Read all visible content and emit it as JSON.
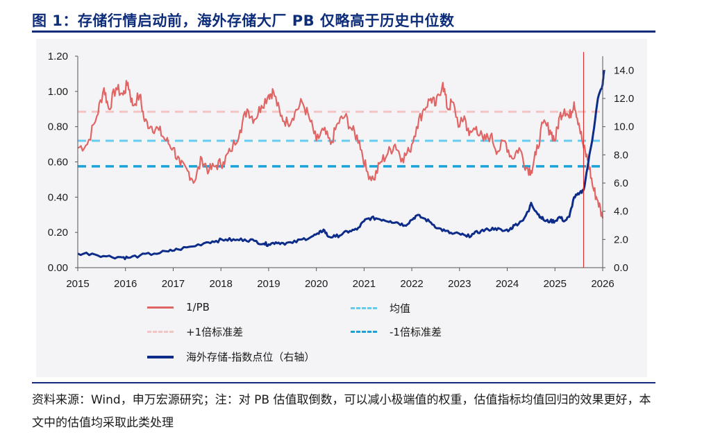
{
  "header": {
    "title": "图 1：存储行情启动前，海外存储大厂 PB 仅略高于历史中位数"
  },
  "footer": {
    "source": "资料来源：Wind，申万宏源研究；注：对 PB 估值取倒数，可以减小极端值的权重，估值指标均值回归的效果更好，本文中的估值均采取此类处理"
  },
  "chart_data": {
    "type": "line",
    "title": "",
    "xlabel": "",
    "ylabel": "",
    "ylabel_right": "",
    "x_ticks": [
      "2015",
      "2016",
      "2017",
      "2018",
      "2019",
      "2020",
      "2021",
      "2022",
      "2023",
      "2024",
      "2025",
      "2026"
    ],
    "x_range": [
      2015.0,
      2026.0
    ],
    "ylim_left": [
      0,
      1.2
    ],
    "left_ticks": [
      "0.00",
      "0.20",
      "0.40",
      "0.60",
      "0.80",
      "1.00",
      "1.20"
    ],
    "ylim_right": [
      0,
      15
    ],
    "right_ticks": [
      "0.0",
      "2.0",
      "4.0",
      "6.0",
      "8.0",
      "10.0",
      "12.0",
      "14.0"
    ],
    "vertical_marker_x": 2025.6,
    "colors": {
      "pb": "#e06666",
      "mean": "#66ccee",
      "plus_std": "#f4c4c4",
      "minus_std": "#1aa3d9",
      "index": "#0d2c8a",
      "marker": "#d93030"
    },
    "legend": [
      "1/PB",
      "均值",
      "+1倍标准差",
      "-1倍标准差",
      "海外存储-指数点位（右轴）"
    ],
    "series": [
      {
        "name": "1/PB",
        "axis": "left",
        "x": [
          2015.0,
          2015.2,
          2015.4,
          2015.55,
          2015.65,
          2015.8,
          2015.95,
          2016.05,
          2016.15,
          2016.3,
          2016.4,
          2016.55,
          2016.7,
          2016.85,
          2017.0,
          2017.15,
          2017.3,
          2017.45,
          2017.6,
          2017.75,
          2017.9,
          2018.05,
          2018.2,
          2018.4,
          2018.55,
          2018.7,
          2018.85,
          2019.0,
          2019.1,
          2019.25,
          2019.4,
          2019.55,
          2019.7,
          2019.85,
          2020.0,
          2020.15,
          2020.3,
          2020.45,
          2020.6,
          2020.75,
          2020.9,
          2021.05,
          2021.2,
          2021.35,
          2021.5,
          2021.65,
          2021.8,
          2021.95,
          2022.1,
          2022.25,
          2022.4,
          2022.5,
          2022.65,
          2022.75,
          2022.85,
          2023.0,
          2023.1,
          2023.2,
          2023.35,
          2023.5,
          2023.65,
          2023.8,
          2023.95,
          2024.1,
          2024.25,
          2024.4,
          2024.5,
          2024.6,
          2024.75,
          2024.9,
          2025.0,
          2025.1,
          2025.2,
          2025.3,
          2025.4,
          2025.5,
          2025.6,
          2025.7,
          2025.8,
          2025.9,
          2026.0
        ],
        "values": [
          0.68,
          0.7,
          0.86,
          1.02,
          0.9,
          1.02,
          0.98,
          1.05,
          0.92,
          0.98,
          0.83,
          0.8,
          0.78,
          0.72,
          0.68,
          0.58,
          0.55,
          0.49,
          0.62,
          0.55,
          0.58,
          0.6,
          0.66,
          0.78,
          0.9,
          0.84,
          0.92,
          0.98,
          1.0,
          0.86,
          0.82,
          0.88,
          0.94,
          0.85,
          0.72,
          0.78,
          0.7,
          0.82,
          0.86,
          0.78,
          0.72,
          0.55,
          0.5,
          0.6,
          0.65,
          0.7,
          0.62,
          0.66,
          0.8,
          0.9,
          0.96,
          0.92,
          1.05,
          0.9,
          0.94,
          0.8,
          0.86,
          0.75,
          0.8,
          0.72,
          0.75,
          0.66,
          0.72,
          0.62,
          0.68,
          0.57,
          0.55,
          0.64,
          0.82,
          0.78,
          0.72,
          0.86,
          0.9,
          0.85,
          0.94,
          0.82,
          0.68,
          0.6,
          0.45,
          0.38,
          0.28
        ]
      },
      {
        "name": "均值",
        "axis": "left",
        "constant": 0.72
      },
      {
        "name": "+1倍标准差",
        "axis": "left",
        "constant": 0.885
      },
      {
        "name": "-1倍标准差",
        "axis": "left",
        "constant": 0.575
      },
      {
        "name": "海外存储-指数点位（右轴）",
        "axis": "right",
        "x": [
          2015.0,
          2015.3,
          2015.6,
          2015.9,
          2016.05,
          2016.3,
          2016.6,
          2016.9,
          2017.1,
          2017.4,
          2017.7,
          2017.9,
          2018.1,
          2018.3,
          2018.5,
          2018.7,
          2018.9,
          2019.0,
          2019.15,
          2019.3,
          2019.5,
          2019.7,
          2019.9,
          2020.05,
          2020.15,
          2020.25,
          2020.4,
          2020.55,
          2020.7,
          2020.85,
          2021.0,
          2021.1,
          2021.25,
          2021.4,
          2021.55,
          2021.7,
          2021.85,
          2022.0,
          2022.1,
          2022.25,
          2022.4,
          2022.55,
          2022.7,
          2022.85,
          2023.0,
          2023.15,
          2023.3,
          2023.45,
          2023.6,
          2023.75,
          2023.9,
          2024.05,
          2024.15,
          2024.3,
          2024.45,
          2024.5,
          2024.6,
          2024.7,
          2024.8,
          2024.9,
          2025.0,
          2025.1,
          2025.2,
          2025.3,
          2025.4,
          2025.5,
          2025.6,
          2025.7,
          2025.8,
          2025.9,
          2026.0,
          2026.03
        ],
        "values": [
          1.0,
          1.0,
          0.8,
          0.75,
          0.7,
          0.85,
          1.0,
          1.15,
          1.3,
          1.5,
          1.8,
          1.9,
          2.0,
          1.95,
          2.0,
          1.9,
          1.7,
          1.65,
          1.8,
          1.75,
          1.75,
          2.0,
          2.2,
          2.4,
          2.7,
          2.2,
          2.2,
          2.4,
          2.6,
          2.7,
          3.3,
          3.5,
          3.5,
          3.4,
          3.3,
          3.2,
          3.0,
          3.4,
          3.7,
          3.5,
          3.2,
          2.8,
          2.6,
          2.4,
          2.4,
          2.2,
          2.4,
          2.6,
          2.7,
          2.8,
          2.6,
          2.7,
          3.0,
          3.3,
          4.0,
          4.6,
          4.0,
          3.6,
          3.3,
          3.3,
          3.3,
          3.6,
          3.3,
          3.6,
          5.0,
          5.2,
          5.5,
          7.5,
          9.5,
          12.0,
          13.0,
          14.0
        ]
      }
    ]
  }
}
